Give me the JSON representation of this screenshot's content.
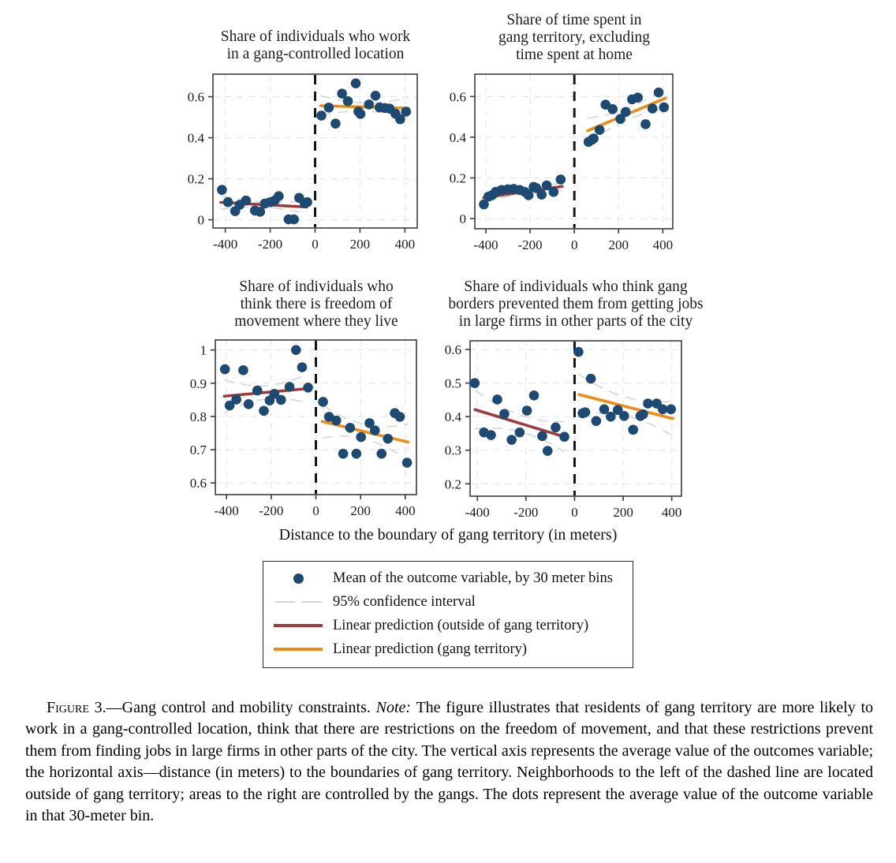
{
  "figure": {
    "xlabel": "Distance to the boundary of gang territory (in meters)",
    "colors": {
      "dot": "#1c4a73",
      "prediction_outside": "#a03b3b",
      "prediction_gang": "#f08c11",
      "ci": "#d3d3d3",
      "grid": "#e7e7e7",
      "axis": "#3c3c3c",
      "cutoff": "#161616"
    },
    "legend": {
      "items": [
        {
          "symbol": "mean-dot",
          "label": "Mean of the outcome variable, by 30 meter bins"
        },
        {
          "symbol": "ci-line",
          "label": "95% confidence interval"
        },
        {
          "symbol": "outside-line",
          "label": "Linear prediction (outside of gang territory)"
        },
        {
          "symbol": "gang-line",
          "label": "Linear prediction (gang territory)"
        }
      ]
    },
    "caption": {
      "label": "Figure 3.",
      "title": "—Gang control and mobility constraints. ",
      "note_label": "Note:",
      "note_text": " The figure illustrates that residents of gang territory are more likely to work in a gang-controlled location, think that there are restrictions on the freedom of movement, and that these restrictions prevent them from finding jobs in large firms in other parts of the city. The vertical axis represents the average value of the outcomes variable; the horizontal axis—distance (in meters) to the boundaries of gang territory. Neighborhoods to the left of the dashed line are located outside of gang territory; areas to the right are controlled by the gangs. The dots represent the average value of the outcome variable in that 30-meter bin."
    }
  },
  "chart_data": [
    {
      "type": "scatter",
      "title": "Share of individuals who work\nin a gang-controlled location",
      "xlabel": "Distance to the boundary of gang territory (in meters)",
      "xlim": [
        -455,
        455
      ],
      "ylim": [
        -0.04,
        0.71
      ],
      "xticks": [
        -400,
        -200,
        0,
        200,
        400
      ],
      "yticks": [
        0,
        0.2,
        0.4,
        0.6
      ],
      "ytick_labels": [
        "0",
        "0.2",
        "0.4",
        "0.6"
      ],
      "cutoff_x": 0,
      "series": {
        "outside": {
          "name": "Outside of gang territory",
          "points": [
            [
              -415,
              0.146
            ],
            [
              -388,
              0.086
            ],
            [
              -356,
              0.042
            ],
            [
              -336,
              0.073
            ],
            [
              -308,
              0.094
            ],
            [
              -268,
              0.045
            ],
            [
              -245,
              0.039
            ],
            [
              -224,
              0.079
            ],
            [
              -200,
              0.086
            ],
            [
              -180,
              0.094
            ],
            [
              -162,
              0.115
            ],
            [
              -118,
              0.002
            ],
            [
              -94,
              0.002
            ],
            [
              -71,
              0.107
            ],
            [
              -47,
              0.081
            ],
            [
              -35,
              0.086
            ]
          ],
          "fit": {
            "x": [
              -420,
              -38
            ],
            "y": [
              0.085,
              0.062
            ]
          },
          "ci": {
            "end0": 0.034,
            "mid": 0.013,
            "end1": 0.032
          }
        },
        "gang": {
          "name": "Gang territory",
          "points": [
            [
              28,
              0.508
            ],
            [
              61,
              0.547
            ],
            [
              91,
              0.469
            ],
            [
              120,
              0.615
            ],
            [
              146,
              0.578
            ],
            [
              181,
              0.665
            ],
            [
              193,
              0.528
            ],
            [
              202,
              0.516
            ],
            [
              240,
              0.562
            ],
            [
              269,
              0.605
            ],
            [
              287,
              0.548
            ],
            [
              311,
              0.545
            ],
            [
              332,
              0.542
            ],
            [
              358,
              0.517
            ],
            [
              379,
              0.49
            ],
            [
              405,
              0.527
            ]
          ],
          "fit": {
            "x": [
              25,
              415
            ],
            "y": [
              0.556,
              0.544
            ]
          },
          "ci": {
            "end0": 0.05,
            "mid": 0.02,
            "end1": 0.052
          }
        }
      }
    },
    {
      "type": "scatter",
      "title": "Share of time spent in\ngang territory, excluding\ntime spent at home",
      "xlabel": "Distance to the boundary of gang territory (in meters)",
      "xlim": [
        -450,
        445
      ],
      "ylim": [
        -0.05,
        0.71
      ],
      "xticks": [
        -400,
        -200,
        0,
        200,
        400
      ],
      "yticks": [
        0,
        0.2,
        0.4,
        0.6
      ],
      "ytick_labels": [
        "0",
        "0.2",
        "0.4",
        "0.6"
      ],
      "cutoff_x": 0,
      "series": {
        "outside": {
          "name": "Outside of gang territory",
          "points": [
            [
              -409,
              0.07
            ],
            [
              -388,
              0.108
            ],
            [
              -372,
              0.115
            ],
            [
              -356,
              0.131
            ],
            [
              -329,
              0.141
            ],
            [
              -301,
              0.144
            ],
            [
              -274,
              0.146
            ],
            [
              -247,
              0.141
            ],
            [
              -224,
              0.131
            ],
            [
              -207,
              0.115
            ],
            [
              -184,
              0.156
            ],
            [
              -172,
              0.15
            ],
            [
              -148,
              0.118
            ],
            [
              -125,
              0.163
            ],
            [
              -94,
              0.131
            ],
            [
              -62,
              0.192
            ]
          ],
          "fit": {
            "x": [
              -410,
              -55
            ],
            "y": [
              0.103,
              0.158
            ]
          },
          "ci": {
            "end0": 0.022,
            "mid": 0.01,
            "end1": 0.02
          }
        },
        "gang": {
          "name": "Gang territory",
          "points": [
            [
              64,
              0.377
            ],
            [
              80,
              0.388
            ],
            [
              87,
              0.394
            ],
            [
              114,
              0.436
            ],
            [
              141,
              0.56
            ],
            [
              173,
              0.538
            ],
            [
              208,
              0.49
            ],
            [
              232,
              0.524
            ],
            [
              261,
              0.586
            ],
            [
              287,
              0.595
            ],
            [
              322,
              0.464
            ],
            [
              353,
              0.541
            ],
            [
              381,
              0.62
            ],
            [
              405,
              0.547
            ]
          ],
          "fit": {
            "x": [
              60,
              412
            ],
            "y": [
              0.432,
              0.592
            ]
          },
          "ci": {
            "end0": 0.062,
            "mid": 0.028,
            "end1": 0.05
          }
        }
      }
    },
    {
      "type": "scatter",
      "title": "Share of individuals who\nthink there is freedom of\nmovement where they live",
      "xlabel": "Distance to the boundary of gang territory (in meters)",
      "xlim": [
        -450,
        450
      ],
      "ylim": [
        0.565,
        1.03
      ],
      "xticks": [
        -400,
        -200,
        0,
        200,
        400
      ],
      "yticks": [
        0.6,
        0.7,
        0.8,
        0.9,
        1
      ],
      "ytick_labels": [
        "0.6",
        "0.7",
        "0.8",
        "0.9",
        "1"
      ],
      "cutoff_x": 0,
      "series": {
        "outside": {
          "name": "Outside of gang territory",
          "points": [
            [
              -407,
              0.942
            ],
            [
              -386,
              0.833
            ],
            [
              -356,
              0.851
            ],
            [
              -325,
              0.939
            ],
            [
              -301,
              0.837
            ],
            [
              -262,
              0.878
            ],
            [
              -233,
              0.817
            ],
            [
              -207,
              0.848
            ],
            [
              -186,
              0.868
            ],
            [
              -156,
              0.85
            ],
            [
              -118,
              0.889
            ],
            [
              -89,
              1.0
            ],
            [
              -62,
              0.948
            ],
            [
              -35,
              0.887
            ]
          ],
          "fit": {
            "x": [
              -410,
              -35
            ],
            "y": [
              0.861,
              0.884
            ]
          },
          "ci": {
            "end0": 0.05,
            "mid": 0.02,
            "end1": 0.045
          }
        },
        "gang": {
          "name": "Gang territory",
          "points": [
            [
              32,
              0.844
            ],
            [
              59,
              0.799
            ],
            [
              91,
              0.788
            ],
            [
              122,
              0.688
            ],
            [
              153,
              0.766
            ],
            [
              181,
              0.688
            ],
            [
              202,
              0.738
            ],
            [
              240,
              0.78
            ],
            [
              264,
              0.758
            ],
            [
              294,
              0.688
            ],
            [
              322,
              0.733
            ],
            [
              353,
              0.81
            ],
            [
              376,
              0.799
            ],
            [
              408,
              0.661
            ]
          ],
          "fit": {
            "x": [
              28,
              412
            ],
            "y": [
              0.785,
              0.723
            ]
          },
          "ci": {
            "end0": 0.05,
            "mid": 0.022,
            "end1": 0.055
          }
        }
      }
    },
    {
      "type": "scatter",
      "title": "Share of individuals who think gang\nborders prevented them from getting jobs\nin large firms in other parts of the city",
      "xlabel": "Distance to the boundary of gang territory (in meters)",
      "xlim": [
        -430,
        440
      ],
      "ylim": [
        0.163,
        0.626
      ],
      "xticks": [
        -400,
        -200,
        0,
        200,
        400
      ],
      "yticks": [
        0.2,
        0.3,
        0.4,
        0.5,
        0.6
      ],
      "ytick_labels": [
        "0.2",
        "0.3",
        "0.4",
        "0.5",
        "0.6"
      ],
      "cutoff_x": 0,
      "series": {
        "outside": {
          "name": "Outside of gang territory",
          "points": [
            [
              -411,
              0.5
            ],
            [
              -373,
              0.353
            ],
            [
              -344,
              0.345
            ],
            [
              -318,
              0.451
            ],
            [
              -289,
              0.408
            ],
            [
              -259,
              0.331
            ],
            [
              -226,
              0.353
            ],
            [
              -196,
              0.418
            ],
            [
              -167,
              0.463
            ],
            [
              -133,
              0.342
            ],
            [
              -111,
              0.298
            ],
            [
              -78,
              0.368
            ],
            [
              -42,
              0.34
            ]
          ],
          "fit": {
            "x": [
              -410,
              -42
            ],
            "y": [
              0.421,
              0.34
            ]
          },
          "ci": {
            "end0": 0.058,
            "mid": 0.025,
            "end1": 0.045
          }
        },
        "gang": {
          "name": "Gang territory",
          "points": [
            [
              16,
              0.593
            ],
            [
              33,
              0.41
            ],
            [
              44,
              0.413
            ],
            [
              67,
              0.513
            ],
            [
              89,
              0.387
            ],
            [
              122,
              0.422
            ],
            [
              149,
              0.4
            ],
            [
              178,
              0.42
            ],
            [
              204,
              0.402
            ],
            [
              241,
              0.361
            ],
            [
              271,
              0.402
            ],
            [
              282,
              0.407
            ],
            [
              302,
              0.439
            ],
            [
              338,
              0.439
            ],
            [
              363,
              0.422
            ],
            [
              397,
              0.422
            ]
          ],
          "fit": {
            "x": [
              18,
              405
            ],
            "y": [
              0.466,
              0.394
            ]
          },
          "ci": {
            "end0": 0.06,
            "mid": 0.028,
            "end1": 0.052
          }
        }
      }
    }
  ]
}
